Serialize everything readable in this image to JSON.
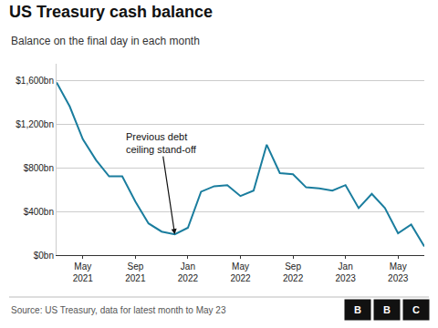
{
  "chart_data": {
    "type": "line",
    "title": "US Treasury cash balance",
    "subtitle": "Balance on the final day in each month",
    "source": "Source: US Treasury, data for latest month to May 23",
    "annotation": "Previous debt\nceiling stand-off",
    "logo": [
      "B",
      "B",
      "C"
    ],
    "categories": [
      null,
      null,
      "May\n2021",
      null,
      null,
      null,
      "Sep\n2021",
      null,
      null,
      null,
      "Jan\n2022",
      null,
      null,
      null,
      "May\n2022",
      null,
      null,
      null,
      "Sep\n2022",
      null,
      null,
      null,
      "Jan\n2023",
      null,
      null,
      null,
      "May\n2023",
      null,
      null
    ],
    "values": [
      1580,
      1360,
      1060,
      870,
      720,
      720,
      490,
      290,
      215,
      190,
      250,
      580,
      630,
      640,
      540,
      590,
      1010,
      750,
      740,
      620,
      610,
      590,
      640,
      430,
      560,
      430,
      200,
      280,
      80
    ],
    "color": "#1a7d9e",
    "ylim": [
      0,
      1750
    ],
    "yticks": [
      {
        "value": 0,
        "label": "$0bn"
      },
      {
        "value": 400,
        "label": "$400bn"
      },
      {
        "value": 800,
        "label": "$800bn"
      },
      {
        "value": 1200,
        "label": "$1,200bn"
      },
      {
        "value": 1600,
        "label": "$1,600bn"
      }
    ],
    "grid": true
  }
}
